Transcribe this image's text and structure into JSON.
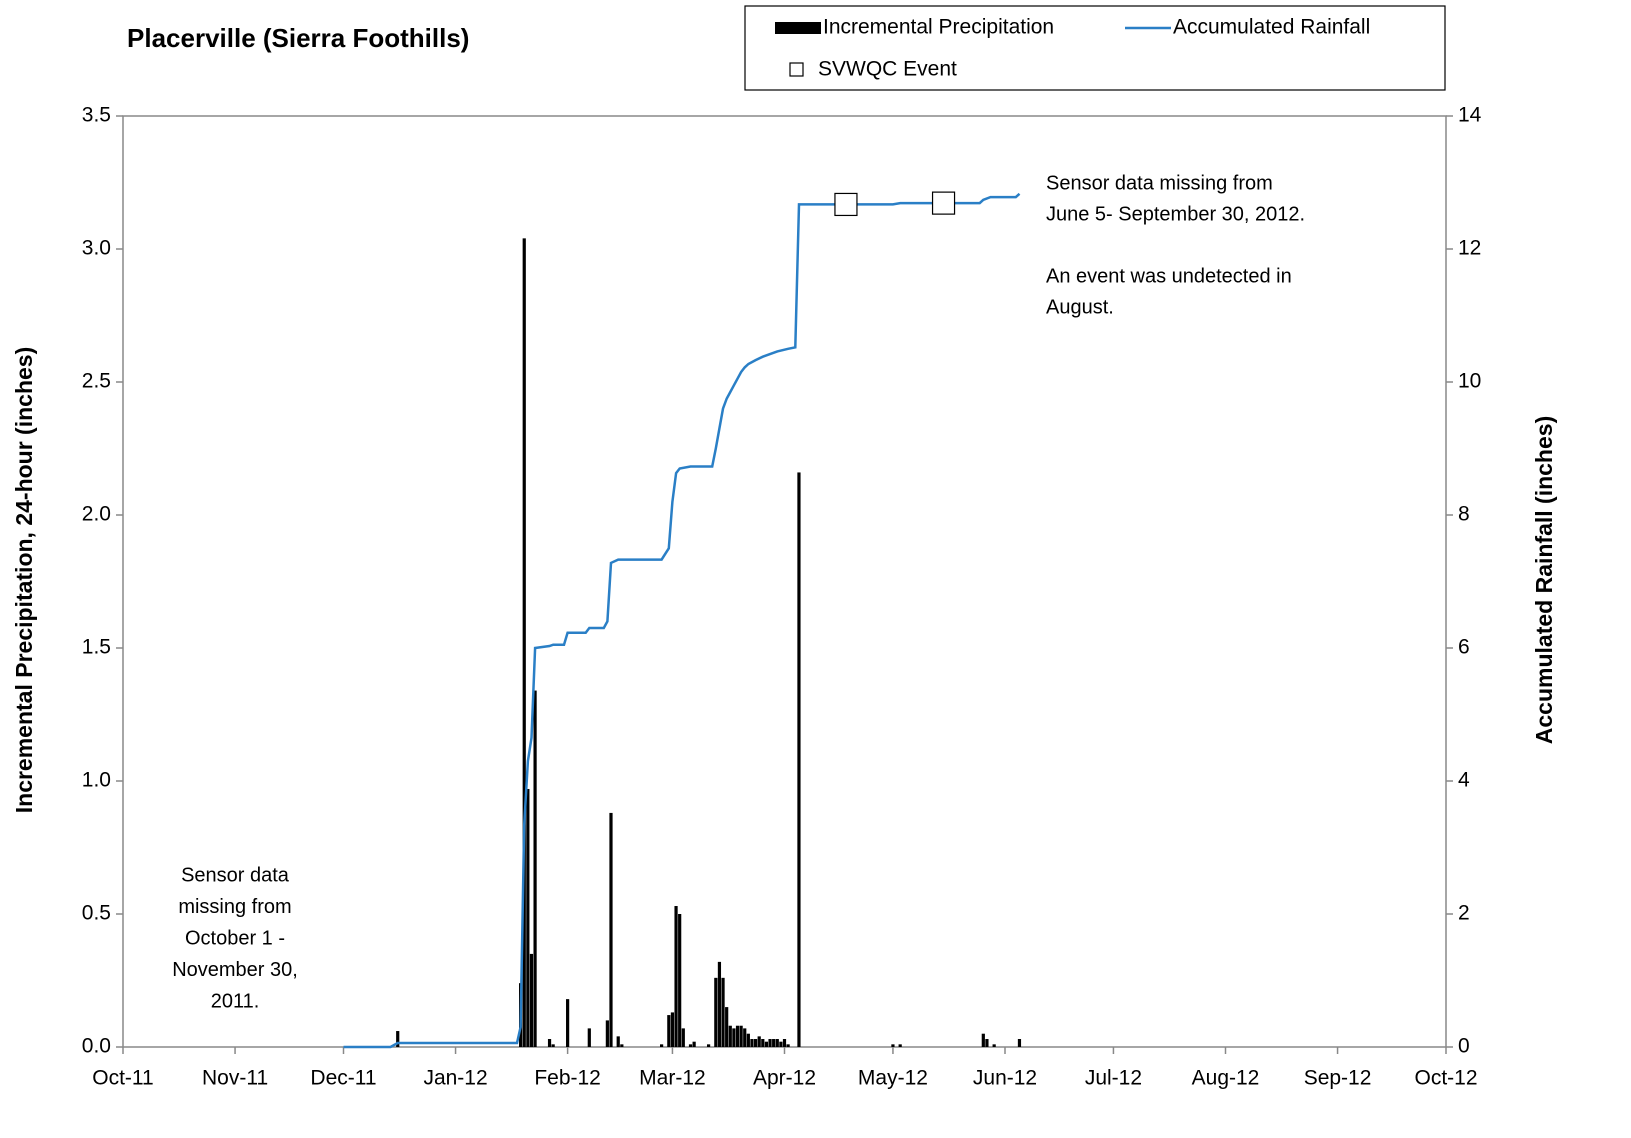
{
  "chart_data": {
    "type": "bar-line",
    "title": "Placerville (Sierra Foothills)",
    "ylabel": "Incremental Precipitation, 24-hour (inches)",
    "y2label": "Accumulated Rainfall (inches)",
    "xlim": [
      0,
      366
    ],
    "xticks": [
      {
        "value": 0,
        "label": "Oct-11"
      },
      {
        "value": 31,
        "label": "Nov-11"
      },
      {
        "value": 61,
        "label": "Dec-11"
      },
      {
        "value": 92,
        "label": "Jan-12"
      },
      {
        "value": 123,
        "label": "Feb-12"
      },
      {
        "value": 152,
        "label": "Mar-12"
      },
      {
        "value": 183,
        "label": "Apr-12"
      },
      {
        "value": 213,
        "label": "May-12"
      },
      {
        "value": 244,
        "label": "Jun-12"
      },
      {
        "value": 274,
        "label": "Jul-12"
      },
      {
        "value": 305,
        "label": "Aug-12"
      },
      {
        "value": 336,
        "label": "Sep-12"
      },
      {
        "value": 366,
        "label": "Oct-12"
      }
    ],
    "ylim": [
      0,
      3.5
    ],
    "yticks": [
      {
        "value": 0,
        "label": "0.0"
      },
      0.5,
      {
        "value": 1,
        "label": "1.0"
      },
      1.5,
      {
        "value": 2,
        "label": "2.0"
      },
      2.5,
      {
        "value": 3,
        "label": "3.0"
      },
      3.5
    ],
    "y2lim": [
      0,
      14
    ],
    "y2ticks": [
      0,
      2,
      4,
      6,
      8,
      10,
      12,
      14
    ],
    "grid": false,
    "series": [
      {
        "name": "Incremental Precipitation",
        "type": "bar",
        "color": "#000000",
        "x": [
          76,
          110,
          111,
          112,
          113,
          114,
          118,
          119,
          123,
          129,
          134,
          135,
          137,
          138,
          149,
          151,
          152,
          153,
          154,
          155,
          157,
          158,
          162,
          164,
          165,
          166,
          167,
          168,
          169,
          170,
          171,
          172,
          173,
          174,
          175,
          176,
          177,
          178,
          179,
          180,
          181,
          182,
          183,
          184,
          187,
          213,
          215,
          238,
          239,
          241,
          248
        ],
        "values": [
          0.06,
          0.24,
          3.04,
          0.97,
          0.35,
          1.34,
          0.03,
          0.01,
          0.18,
          0.07,
          0.1,
          0.88,
          0.04,
          0.01,
          0.01,
          0.12,
          0.13,
          0.53,
          0.5,
          0.07,
          0.01,
          0.02,
          0.01,
          0.26,
          0.32,
          0.26,
          0.15,
          0.08,
          0.07,
          0.08,
          0.08,
          0.07,
          0.05,
          0.03,
          0.03,
          0.04,
          0.03,
          0.02,
          0.03,
          0.03,
          0.03,
          0.02,
          0.03,
          0.01,
          2.16,
          0.01,
          0.01,
          0.05,
          0.03,
          0.01,
          0.03
        ]
      },
      {
        "name": "Accumulated Rainfall",
        "type": "line",
        "axis": "y2",
        "color": "#2a7fc6",
        "x": [
          61,
          74,
          76,
          109,
          110,
          111,
          112,
          113,
          114,
          118,
          119,
          122,
          123,
          128,
          129,
          133,
          134,
          135,
          137,
          149,
          151,
          152,
          153,
          154,
          157,
          163,
          164,
          165,
          166,
          167,
          168,
          169,
          170,
          171,
          172,
          173,
          175,
          177,
          179,
          181,
          184,
          186,
          187,
          213,
          215,
          237,
          238,
          240,
          247,
          248
        ],
        "values": [
          0,
          0,
          0.06,
          0.06,
          0.3,
          3.34,
          4.3,
          4.65,
          6.0,
          6.03,
          6.05,
          6.05,
          6.23,
          6.23,
          6.3,
          6.3,
          6.4,
          7.28,
          7.33,
          7.33,
          7.5,
          8.2,
          8.63,
          8.7,
          8.73,
          8.73,
          9.0,
          9.3,
          9.6,
          9.75,
          9.85,
          9.95,
          10.05,
          10.15,
          10.22,
          10.27,
          10.33,
          10.38,
          10.42,
          10.46,
          10.5,
          10.52,
          12.67,
          12.67,
          12.69,
          12.69,
          12.74,
          12.78,
          12.78,
          12.83
        ]
      },
      {
        "name": "SVWQC Event",
        "type": "marker",
        "axis": "y2",
        "marker": "square",
        "color": "#ffffff",
        "x": [
          200,
          227
        ],
        "values": [
          12.67,
          12.69
        ]
      }
    ],
    "annotations": [
      {
        "lines": [
          "Sensor data",
          "missing from",
          "October 1 -",
          "November 30,",
          "2011."
        ]
      },
      {
        "lines": [
          "Sensor data missing from",
          "June 5- September  30, 2012.",
          "",
          "An event was undetected  in",
          "August."
        ]
      }
    ]
  }
}
